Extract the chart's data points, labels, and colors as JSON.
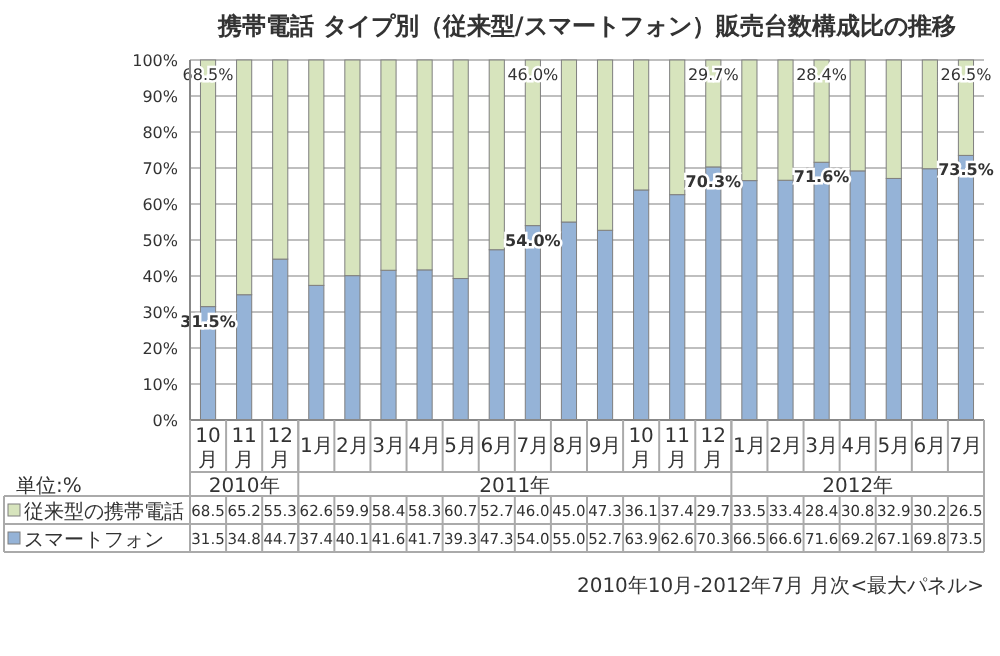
{
  "chart_data": {
    "type": "bar",
    "stacked": true,
    "title": "携帯電話 タイプ別（従来型/スマートフォン）販売台数構成比の推移",
    "categories": [
      "10月",
      "11月",
      "12月",
      "1月",
      "2月",
      "3月",
      "4月",
      "5月",
      "6月",
      "7月",
      "8月",
      "9月",
      "10月",
      "11月",
      "12月",
      "1月",
      "2月",
      "3月",
      "4月",
      "5月",
      "6月",
      "7月"
    ],
    "series": [
      {
        "name": "スマートフォン",
        "color": "#95b3d7",
        "values": [
          31.5,
          34.8,
          44.7,
          37.4,
          40.1,
          41.6,
          41.7,
          39.3,
          47.3,
          54.0,
          55.0,
          52.7,
          63.9,
          62.6,
          70.3,
          66.5,
          66.6,
          71.6,
          69.2,
          67.1,
          69.8,
          73.5
        ],
        "value_labels": [
          "31.5",
          "34.8",
          "44.7",
          "37.4",
          "40.1",
          "41.6",
          "41.7",
          "39.3",
          "47.3",
          "54.0",
          "55.0",
          "52.7",
          "63.9",
          "62.6",
          "70.3",
          "66.5",
          "66.6",
          "71.6",
          "69.2",
          "67.1",
          "69.8",
          "73.5"
        ]
      },
      {
        "name": "従来型の携帯電話",
        "color": "#d7e4bd",
        "values": [
          68.5,
          65.2,
          55.3,
          62.6,
          59.9,
          58.4,
          58.3,
          60.7,
          52.7,
          46.0,
          45.0,
          47.3,
          36.1,
          37.4,
          29.7,
          33.5,
          33.4,
          28.4,
          30.8,
          32.9,
          30.2,
          26.5
        ],
        "value_labels": [
          "68.5",
          "65.2",
          "55.3",
          "62.6",
          "59.9",
          "58.4",
          "58.3",
          "60.7",
          "52.7",
          "46.0",
          "45.0",
          "47.3",
          "36.1",
          "37.4",
          "29.7",
          "33.5",
          "33.4",
          "28.4",
          "30.8",
          "32.9",
          "30.2",
          "26.5"
        ]
      }
    ],
    "ylim": [
      0,
      100
    ],
    "yticks": [
      {
        "value": 0,
        "label": "0%"
      },
      {
        "value": 10,
        "label": "10%"
      },
      {
        "value": 20,
        "label": "20%"
      },
      {
        "value": 30,
        "label": "30%"
      },
      {
        "value": 40,
        "label": "40%"
      },
      {
        "value": 50,
        "label": "50%"
      },
      {
        "value": 60,
        "label": "60%"
      },
      {
        "value": 70,
        "label": "70%"
      },
      {
        "value": 80,
        "label": "80%"
      },
      {
        "value": 90,
        "label": "90%"
      },
      {
        "value": 100,
        "label": "100%"
      }
    ],
    "grid": "y",
    "legend": "bottom",
    "annotations": [
      "2010年",
      "2011年",
      "2012年",
      "単位:%",
      "2010年10月-2012年7月 月次<最大パネル>",
      {
        "text": "31.5%",
        "x": "10月",
        "y": 31.5
      },
      {
        "text": "68.5%",
        "x": "10月",
        "y": 100
      },
      {
        "text": "54.0%",
        "x": "7月",
        "y": 54.0
      },
      {
        "text": "46.0%",
        "x": "7月",
        "y": 100
      },
      {
        "text": "70.3%",
        "y": 70.3
      },
      {
        "text": "29.7%",
        "y": 100
      },
      {
        "text": "71.6%",
        "y": 71.6
      },
      {
        "text": "28.4%",
        "y": 100
      },
      {
        "text": "73.5%",
        "y": 73.5
      },
      {
        "text": "26.5%",
        "y": 100
      }
    ]
  }
}
